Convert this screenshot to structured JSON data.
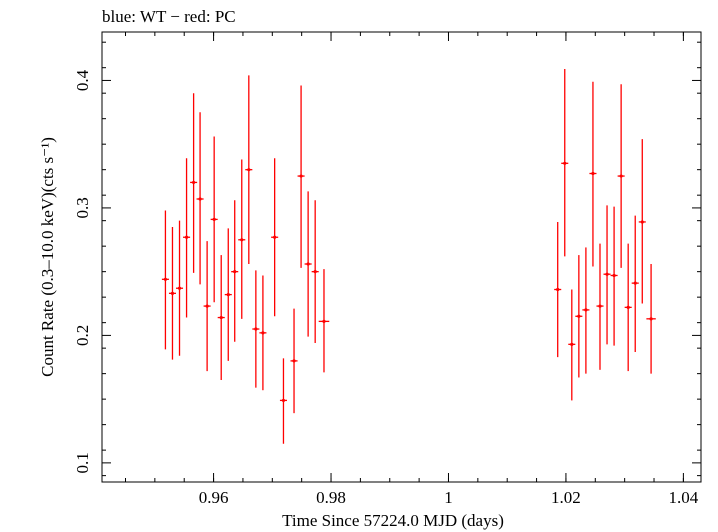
{
  "chart_data": {
    "type": "scatter",
    "title": "blue: WT − red: PC",
    "xlabel": "Time Since 57224.0 MJD (days)",
    "ylabel": "Count Rate (0.3–10.0 keV)(cts s⁻¹)",
    "xlim": [
      0.941,
      1.043
    ],
    "ylim": [
      0.085,
      0.438
    ],
    "x_ticks": [
      0.96,
      0.98,
      1,
      1.02,
      1.04
    ],
    "x_tick_labels": [
      "0.96",
      "0.98",
      "1",
      "1.02",
      "1.04"
    ],
    "y_ticks": [
      0.1,
      0.2,
      0.3,
      0.4
    ],
    "y_tick_labels": [
      "0.1",
      "0.2",
      "0.3",
      "0.4"
    ],
    "grid": false,
    "series": [
      {
        "color": "#ff0000",
        "points": [
          {
            "x": 0.9518,
            "xerr": 0.0006,
            "y": 0.244,
            "ylo": 0.189,
            "yhi": 0.298
          },
          {
            "x": 0.953,
            "xerr": 0.0006,
            "y": 0.233,
            "ylo": 0.181,
            "yhi": 0.285
          },
          {
            "x": 0.9542,
            "xerr": 0.0006,
            "y": 0.237,
            "ylo": 0.184,
            "yhi": 0.29
          },
          {
            "x": 0.9554,
            "xerr": 0.0006,
            "y": 0.277,
            "ylo": 0.214,
            "yhi": 0.339
          },
          {
            "x": 0.9566,
            "xerr": 0.0006,
            "y": 0.32,
            "ylo": 0.249,
            "yhi": 0.39
          },
          {
            "x": 0.9577,
            "xerr": 0.0006,
            "y": 0.307,
            "ylo": 0.24,
            "yhi": 0.375
          },
          {
            "x": 0.9589,
            "xerr": 0.0006,
            "y": 0.223,
            "ylo": 0.172,
            "yhi": 0.274
          },
          {
            "x": 0.9601,
            "xerr": 0.0006,
            "y": 0.291,
            "ylo": 0.226,
            "yhi": 0.356
          },
          {
            "x": 0.9613,
            "xerr": 0.0006,
            "y": 0.214,
            "ylo": 0.165,
            "yhi": 0.263
          },
          {
            "x": 0.9625,
            "xerr": 0.0006,
            "y": 0.232,
            "ylo": 0.18,
            "yhi": 0.284
          },
          {
            "x": 0.9636,
            "xerr": 0.0006,
            "y": 0.25,
            "ylo": 0.195,
            "yhi": 0.306
          },
          {
            "x": 0.9648,
            "xerr": 0.0006,
            "y": 0.275,
            "ylo": 0.213,
            "yhi": 0.338
          },
          {
            "x": 0.966,
            "xerr": 0.0006,
            "y": 0.33,
            "ylo": 0.256,
            "yhi": 0.404
          },
          {
            "x": 0.9672,
            "xerr": 0.0006,
            "y": 0.205,
            "ylo": 0.159,
            "yhi": 0.251
          },
          {
            "x": 0.9684,
            "xerr": 0.0006,
            "y": 0.202,
            "ylo": 0.157,
            "yhi": 0.247
          },
          {
            "x": 0.9704,
            "xerr": 0.0006,
            "y": 0.277,
            "ylo": 0.215,
            "yhi": 0.339
          },
          {
            "x": 0.9719,
            "xerr": 0.0006,
            "y": 0.149,
            "ylo": 0.115,
            "yhi": 0.182
          },
          {
            "x": 0.9737,
            "xerr": 0.0006,
            "y": 0.18,
            "ylo": 0.139,
            "yhi": 0.221
          },
          {
            "x": 0.9749,
            "xerr": 0.0006,
            "y": 0.325,
            "ylo": 0.253,
            "yhi": 0.396
          },
          {
            "x": 0.9761,
            "xerr": 0.0006,
            "y": 0.256,
            "ylo": 0.199,
            "yhi": 0.313
          },
          {
            "x": 0.9773,
            "xerr": 0.0006,
            "y": 0.25,
            "ylo": 0.194,
            "yhi": 0.306
          },
          {
            "x": 0.9788,
            "xerr": 0.0009,
            "y": 0.211,
            "ylo": 0.171,
            "yhi": 0.252
          },
          {
            "x": 1.0186,
            "xerr": 0.0006,
            "y": 0.236,
            "ylo": 0.183,
            "yhi": 0.289
          },
          {
            "x": 1.0198,
            "xerr": 0.0006,
            "y": 0.335,
            "ylo": 0.262,
            "yhi": 0.409
          },
          {
            "x": 1.021,
            "xerr": 0.0006,
            "y": 0.193,
            "ylo": 0.149,
            "yhi": 0.236
          },
          {
            "x": 1.0222,
            "xerr": 0.0006,
            "y": 0.215,
            "ylo": 0.167,
            "yhi": 0.263
          },
          {
            "x": 1.0234,
            "xerr": 0.0006,
            "y": 0.22,
            "ylo": 0.17,
            "yhi": 0.269
          },
          {
            "x": 1.0246,
            "xerr": 0.0006,
            "y": 0.327,
            "ylo": 0.254,
            "yhi": 0.399
          },
          {
            "x": 1.0258,
            "xerr": 0.0006,
            "y": 0.223,
            "ylo": 0.173,
            "yhi": 0.272
          },
          {
            "x": 1.027,
            "xerr": 0.0006,
            "y": 0.248,
            "ylo": 0.193,
            "yhi": 0.302
          },
          {
            "x": 1.0282,
            "xerr": 0.0006,
            "y": 0.247,
            "ylo": 0.192,
            "yhi": 0.301
          },
          {
            "x": 1.0294,
            "xerr": 0.0006,
            "y": 0.325,
            "ylo": 0.253,
            "yhi": 0.397
          },
          {
            "x": 1.0306,
            "xerr": 0.0006,
            "y": 0.222,
            "ylo": 0.172,
            "yhi": 0.272
          },
          {
            "x": 1.0318,
            "xerr": 0.0006,
            "y": 0.241,
            "ylo": 0.187,
            "yhi": 0.294
          },
          {
            "x": 1.033,
            "xerr": 0.0006,
            "y": 0.289,
            "ylo": 0.225,
            "yhi": 0.354
          },
          {
            "x": 1.0345,
            "xerr": 0.0008,
            "y": 0.213,
            "ylo": 0.17,
            "yhi": 0.256
          }
        ]
      }
    ]
  }
}
